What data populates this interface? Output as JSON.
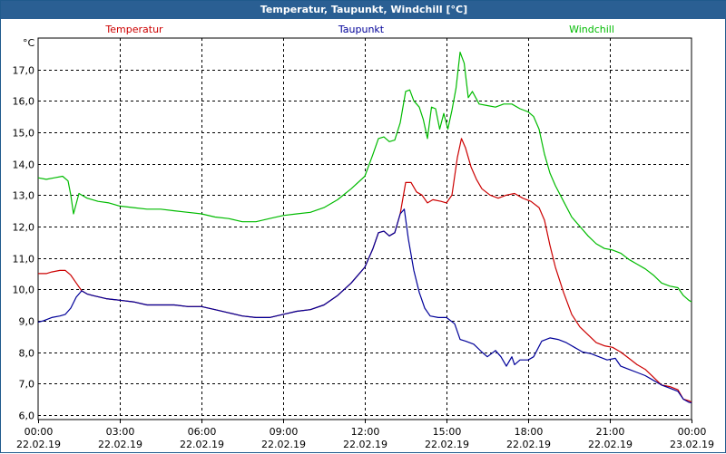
{
  "chart_data": {
    "type": "line",
    "title": "Temperatur, Taupunkt, Windchill [°C]",
    "ylabel": "°C",
    "ylim": [
      5.85,
      18.0
    ],
    "yticks": [
      "6,0",
      "7,0",
      "8,0",
      "9,0",
      "10,0",
      "11,0",
      "12,0",
      "13,0",
      "14,0",
      "15,0",
      "16,0",
      "17,0"
    ],
    "ytick_values": [
      6,
      7,
      8,
      9,
      10,
      11,
      12,
      13,
      14,
      15,
      16,
      17
    ],
    "xlim": [
      0,
      24
    ],
    "xticks": [
      {
        "x": 0,
        "time": "00:00",
        "date": "22.02.19"
      },
      {
        "x": 3,
        "time": "03:00",
        "date": "22.02.19"
      },
      {
        "x": 6,
        "time": "06:00",
        "date": "22.02.19"
      },
      {
        "x": 9,
        "time": "09:00",
        "date": "22.02.19"
      },
      {
        "x": 12,
        "time": "12:00",
        "date": "22.02.19"
      },
      {
        "x": 15,
        "time": "15:00",
        "date": "22.02.19"
      },
      {
        "x": 18,
        "time": "18:00",
        "date": "22.02.19"
      },
      {
        "x": 21,
        "time": "21:00",
        "date": "22.02.19"
      },
      {
        "x": 24,
        "time": "00:00",
        "date": "23.02.19"
      }
    ],
    "grid": true,
    "legend_position": "top",
    "series": [
      {
        "name": "Temperatur",
        "color": "#cc0000",
        "points": [
          [
            0,
            10.5
          ],
          [
            0.3,
            10.5
          ],
          [
            0.5,
            10.55
          ],
          [
            0.8,
            10.6
          ],
          [
            1.0,
            10.6
          ],
          [
            1.2,
            10.45
          ],
          [
            1.4,
            10.2
          ],
          [
            1.6,
            9.95
          ],
          [
            1.8,
            9.85
          ],
          [
            2.0,
            9.8
          ],
          [
            2.5,
            9.7
          ],
          [
            3.0,
            9.65
          ],
          [
            3.5,
            9.6
          ],
          [
            4.0,
            9.5
          ],
          [
            4.5,
            9.5
          ],
          [
            5.0,
            9.5
          ],
          [
            5.5,
            9.45
          ],
          [
            6.0,
            9.45
          ],
          [
            6.5,
            9.35
          ],
          [
            7.0,
            9.25
          ],
          [
            7.5,
            9.15
          ],
          [
            8.0,
            9.1
          ],
          [
            8.5,
            9.1
          ],
          [
            9.0,
            9.2
          ],
          [
            9.5,
            9.3
          ],
          [
            10.0,
            9.35
          ],
          [
            10.5,
            9.5
          ],
          [
            11.0,
            9.8
          ],
          [
            11.5,
            10.2
          ],
          [
            12.0,
            10.7
          ],
          [
            12.3,
            11.3
          ],
          [
            12.5,
            11.8
          ],
          [
            12.7,
            11.85
          ],
          [
            12.9,
            11.7
          ],
          [
            13.1,
            11.8
          ],
          [
            13.3,
            12.4
          ],
          [
            13.5,
            13.4
          ],
          [
            13.7,
            13.4
          ],
          [
            13.9,
            13.1
          ],
          [
            14.1,
            13.0
          ],
          [
            14.3,
            12.75
          ],
          [
            14.5,
            12.85
          ],
          [
            14.8,
            12.8
          ],
          [
            15.0,
            12.75
          ],
          [
            15.2,
            13.0
          ],
          [
            15.4,
            14.2
          ],
          [
            15.55,
            14.8
          ],
          [
            15.7,
            14.5
          ],
          [
            15.9,
            13.9
          ],
          [
            16.1,
            13.5
          ],
          [
            16.3,
            13.2
          ],
          [
            16.6,
            13.0
          ],
          [
            16.9,
            12.9
          ],
          [
            17.2,
            13.0
          ],
          [
            17.5,
            13.05
          ],
          [
            17.8,
            12.9
          ],
          [
            18.1,
            12.8
          ],
          [
            18.4,
            12.6
          ],
          [
            18.6,
            12.2
          ],
          [
            18.8,
            11.4
          ],
          [
            19.0,
            10.7
          ],
          [
            19.3,
            9.9
          ],
          [
            19.6,
            9.2
          ],
          [
            19.9,
            8.8
          ],
          [
            20.2,
            8.55
          ],
          [
            20.5,
            8.3
          ],
          [
            20.8,
            8.2
          ],
          [
            21.1,
            8.15
          ],
          [
            21.4,
            8.0
          ],
          [
            21.7,
            7.8
          ],
          [
            22.0,
            7.6
          ],
          [
            22.3,
            7.45
          ],
          [
            22.6,
            7.2
          ],
          [
            22.9,
            6.95
          ],
          [
            23.2,
            6.9
          ],
          [
            23.5,
            6.8
          ],
          [
            23.7,
            6.5
          ],
          [
            23.9,
            6.45
          ],
          [
            24.0,
            6.4
          ]
        ]
      },
      {
        "name": "Taupunkt",
        "color": "#000099",
        "points": [
          [
            0,
            8.95
          ],
          [
            0.2,
            9.0
          ],
          [
            0.5,
            9.1
          ],
          [
            0.8,
            9.15
          ],
          [
            1.0,
            9.2
          ],
          [
            1.2,
            9.4
          ],
          [
            1.4,
            9.75
          ],
          [
            1.6,
            9.95
          ],
          [
            1.8,
            9.85
          ],
          [
            2.0,
            9.8
          ],
          [
            2.5,
            9.7
          ],
          [
            3.0,
            9.65
          ],
          [
            3.5,
            9.6
          ],
          [
            4.0,
            9.5
          ],
          [
            4.5,
            9.5
          ],
          [
            5.0,
            9.5
          ],
          [
            5.5,
            9.45
          ],
          [
            6.0,
            9.45
          ],
          [
            6.5,
            9.35
          ],
          [
            7.0,
            9.25
          ],
          [
            7.5,
            9.15
          ],
          [
            8.0,
            9.1
          ],
          [
            8.5,
            9.1
          ],
          [
            9.0,
            9.2
          ],
          [
            9.5,
            9.3
          ],
          [
            10.0,
            9.35
          ],
          [
            10.5,
            9.5
          ],
          [
            11.0,
            9.8
          ],
          [
            11.5,
            10.2
          ],
          [
            12.0,
            10.7
          ],
          [
            12.3,
            11.3
          ],
          [
            12.5,
            11.8
          ],
          [
            12.7,
            11.85
          ],
          [
            12.9,
            11.7
          ],
          [
            13.1,
            11.8
          ],
          [
            13.3,
            12.4
          ],
          [
            13.45,
            12.55
          ],
          [
            13.6,
            11.6
          ],
          [
            13.8,
            10.6
          ],
          [
            14.0,
            9.9
          ],
          [
            14.2,
            9.4
          ],
          [
            14.4,
            9.15
          ],
          [
            14.7,
            9.1
          ],
          [
            15.0,
            9.1
          ],
          [
            15.3,
            8.9
          ],
          [
            15.5,
            8.4
          ],
          [
            15.7,
            8.35
          ],
          [
            16.0,
            8.25
          ],
          [
            16.3,
            8.0
          ],
          [
            16.5,
            7.85
          ],
          [
            16.8,
            8.05
          ],
          [
            17.0,
            7.85
          ],
          [
            17.2,
            7.55
          ],
          [
            17.4,
            7.85
          ],
          [
            17.5,
            7.6
          ],
          [
            17.7,
            7.75
          ],
          [
            18.0,
            7.75
          ],
          [
            18.2,
            7.85
          ],
          [
            18.5,
            8.35
          ],
          [
            18.8,
            8.45
          ],
          [
            19.1,
            8.4
          ],
          [
            19.4,
            8.3
          ],
          [
            19.7,
            8.15
          ],
          [
            20.0,
            8.0
          ],
          [
            20.3,
            7.95
          ],
          [
            20.6,
            7.85
          ],
          [
            20.9,
            7.75
          ],
          [
            21.2,
            7.8
          ],
          [
            21.4,
            7.55
          ],
          [
            21.7,
            7.45
          ],
          [
            22.0,
            7.35
          ],
          [
            22.3,
            7.25
          ],
          [
            22.6,
            7.1
          ],
          [
            22.9,
            6.95
          ],
          [
            23.2,
            6.85
          ],
          [
            23.5,
            6.75
          ],
          [
            23.7,
            6.5
          ],
          [
            23.9,
            6.4
          ],
          [
            24.0,
            6.38
          ]
        ]
      },
      {
        "name": "Windchill",
        "color": "#00bb00",
        "points": [
          [
            0,
            13.55
          ],
          [
            0.3,
            13.5
          ],
          [
            0.6,
            13.55
          ],
          [
            0.9,
            13.6
          ],
          [
            1.1,
            13.45
          ],
          [
            1.2,
            13.0
          ],
          [
            1.3,
            12.4
          ],
          [
            1.5,
            13.05
          ],
          [
            1.8,
            12.9
          ],
          [
            2.2,
            12.8
          ],
          [
            2.6,
            12.75
          ],
          [
            3.0,
            12.65
          ],
          [
            3.5,
            12.6
          ],
          [
            4.0,
            12.55
          ],
          [
            4.5,
            12.55
          ],
          [
            5.0,
            12.5
          ],
          [
            5.5,
            12.45
          ],
          [
            6.0,
            12.4
          ],
          [
            6.5,
            12.3
          ],
          [
            7.0,
            12.25
          ],
          [
            7.5,
            12.15
          ],
          [
            8.0,
            12.15
          ],
          [
            8.5,
            12.25
          ],
          [
            9.0,
            12.35
          ],
          [
            9.5,
            12.4
          ],
          [
            10.0,
            12.45
          ],
          [
            10.5,
            12.6
          ],
          [
            11.0,
            12.85
          ],
          [
            11.5,
            13.2
          ],
          [
            12.0,
            13.6
          ],
          [
            12.3,
            14.3
          ],
          [
            12.5,
            14.8
          ],
          [
            12.7,
            14.85
          ],
          [
            12.9,
            14.7
          ],
          [
            13.1,
            14.75
          ],
          [
            13.3,
            15.3
          ],
          [
            13.5,
            16.3
          ],
          [
            13.65,
            16.35
          ],
          [
            13.8,
            16.0
          ],
          [
            14.0,
            15.8
          ],
          [
            14.15,
            15.4
          ],
          [
            14.3,
            14.8
          ],
          [
            14.45,
            15.8
          ],
          [
            14.6,
            15.75
          ],
          [
            14.75,
            15.1
          ],
          [
            14.9,
            15.6
          ],
          [
            15.05,
            15.1
          ],
          [
            15.2,
            15.7
          ],
          [
            15.35,
            16.4
          ],
          [
            15.5,
            17.55
          ],
          [
            15.65,
            17.2
          ],
          [
            15.8,
            16.1
          ],
          [
            15.95,
            16.3
          ],
          [
            16.2,
            15.9
          ],
          [
            16.5,
            15.85
          ],
          [
            16.8,
            15.8
          ],
          [
            17.1,
            15.9
          ],
          [
            17.4,
            15.9
          ],
          [
            17.7,
            15.75
          ],
          [
            18.0,
            15.65
          ],
          [
            18.2,
            15.5
          ],
          [
            18.4,
            15.1
          ],
          [
            18.6,
            14.3
          ],
          [
            18.8,
            13.7
          ],
          [
            19.0,
            13.3
          ],
          [
            19.3,
            12.8
          ],
          [
            19.6,
            12.3
          ],
          [
            19.9,
            12.0
          ],
          [
            20.2,
            11.7
          ],
          [
            20.5,
            11.45
          ],
          [
            20.8,
            11.3
          ],
          [
            21.1,
            11.25
          ],
          [
            21.4,
            11.15
          ],
          [
            21.7,
            10.95
          ],
          [
            22.0,
            10.8
          ],
          [
            22.3,
            10.65
          ],
          [
            22.6,
            10.45
          ],
          [
            22.9,
            10.2
          ],
          [
            23.2,
            10.1
          ],
          [
            23.5,
            10.05
          ],
          [
            23.7,
            9.8
          ],
          [
            23.9,
            9.65
          ],
          [
            24.0,
            9.6
          ]
        ]
      }
    ]
  }
}
